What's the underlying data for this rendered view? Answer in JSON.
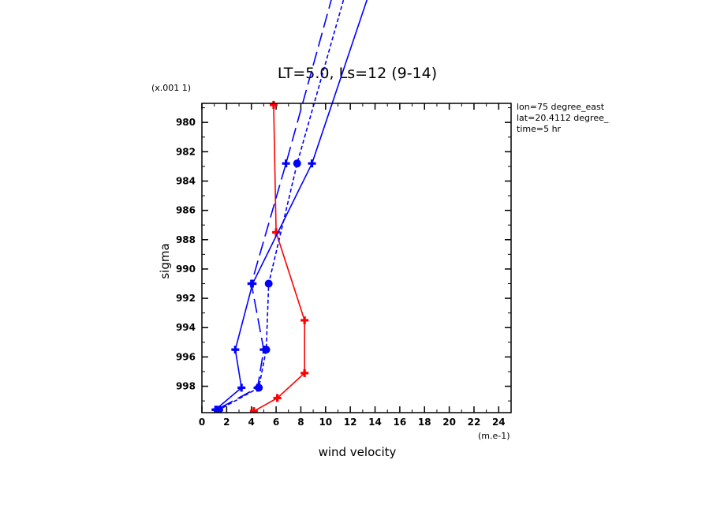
{
  "chart_data": {
    "type": "line",
    "title": "LT=5.0, Ls=12 (9-14)",
    "xlabel": "wind velocity",
    "ylabel": "sigma",
    "x_unit": "(m.e-1)",
    "y_unit": "(x.001 1)",
    "xlim": [
      0,
      25
    ],
    "ylim": [
      999.8,
      978.7
    ],
    "y_inverted": true,
    "x_ticks": [
      "0",
      "2",
      "4",
      "6",
      "8",
      "10",
      "12",
      "14",
      "16",
      "18",
      "20",
      "22",
      "24"
    ],
    "y_ticks": [
      "980",
      "982",
      "984",
      "986",
      "988",
      "990",
      "992",
      "994",
      "996",
      "998"
    ],
    "info": [
      "lon=75 degree_east",
      "lat=20.4112 degree_",
      "time=5 hr"
    ],
    "grid": false,
    "series": [
      {
        "color": "#ff0000",
        "dash": "solid",
        "marker": "cross",
        "points": [
          [
            5.8,
            978.8
          ],
          [
            6.0,
            987.5
          ],
          [
            8.3,
            993.5
          ],
          [
            8.3,
            997.1
          ],
          [
            6.1,
            998.8
          ],
          [
            4.2,
            999.7
          ]
        ]
      },
      {
        "color": "#0000ff",
        "dash": "solid",
        "marker": "cross",
        "points": [
          [
            14.0,
            970.0
          ],
          [
            8.9,
            982.8
          ],
          [
            4.1,
            991.0
          ],
          [
            2.7,
            995.5
          ],
          [
            3.2,
            998.1
          ],
          [
            1.1,
            999.6
          ]
        ]
      },
      {
        "color": "#0000ff",
        "dash": "long-dash",
        "marker": "cross",
        "points": [
          [
            11.0,
            970.0
          ],
          [
            6.8,
            982.8
          ],
          [
            4.0,
            991.0
          ],
          [
            5.0,
            995.5
          ],
          [
            4.5,
            998.1
          ],
          [
            1.2,
            999.6
          ]
        ]
      },
      {
        "color": "#0000ff",
        "dash": "short-dash",
        "marker": "circle",
        "points": [
          [
            12.0,
            970.0
          ],
          [
            7.7,
            982.8
          ],
          [
            5.4,
            991.0
          ],
          [
            5.2,
            995.5
          ],
          [
            4.6,
            998.1
          ],
          [
            1.4,
            999.6
          ]
        ]
      }
    ]
  }
}
